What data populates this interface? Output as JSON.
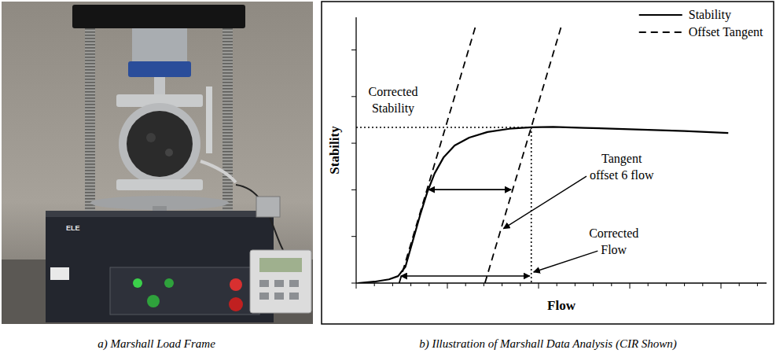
{
  "photo": {
    "caption": "a) Marshall Load Frame",
    "brand": "ELE"
  },
  "chart_data": {
    "type": "line",
    "caption": "b) Illustration of Marshall Data Analysis (CIR Shown)",
    "x_label": "Flow",
    "y_label": "Stability",
    "xlim": [
      0,
      22.5
    ],
    "ylim": [
      0,
      5.7
    ],
    "xticks": [
      0,
      1,
      2,
      3,
      4,
      5,
      6,
      7,
      8,
      9,
      10,
      11,
      12,
      13,
      14,
      15,
      16,
      17,
      18,
      19,
      20,
      21,
      22
    ],
    "yticks": [
      0,
      1,
      2,
      3,
      4,
      5
    ],
    "tick_labels": false,
    "grid": false,
    "legend": "upper right",
    "series": [
      {
        "name": "Stability",
        "color": "#000000",
        "line_style": "solid",
        "x": [
          0.1,
          1,
          1.8,
          2.3,
          2.7,
          3.1,
          3.5,
          3.9,
          4.3,
          4.8,
          5.4,
          6.2,
          7.2,
          8.4,
          9.6,
          10.8,
          12.5,
          15,
          18,
          20.4
        ],
        "values": [
          0,
          0.03,
          0.08,
          0.15,
          0.35,
          0.9,
          1.45,
          1.95,
          2.35,
          2.7,
          2.95,
          3.12,
          3.24,
          3.31,
          3.34,
          3.35,
          3.33,
          3.3,
          3.26,
          3.22
        ]
      },
      {
        "name": "Offset Tangent",
        "color": "#000000",
        "line_style": "dashed",
        "x": [
          2.36,
          6.54,
          null,
          7.06,
          11.24
        ],
        "values": [
          0,
          5.5,
          null,
          0,
          5.5
        ]
      }
    ],
    "corrected": {
      "x": 9.6,
      "y": 3.34
    },
    "annotations": {
      "corrected_stability": [
        "Corrected",
        "Stability"
      ],
      "tangent_offset": [
        "Tangent",
        "offset 6 flow"
      ],
      "corrected_flow": [
        "Corrected",
        "Flow"
      ]
    }
  }
}
